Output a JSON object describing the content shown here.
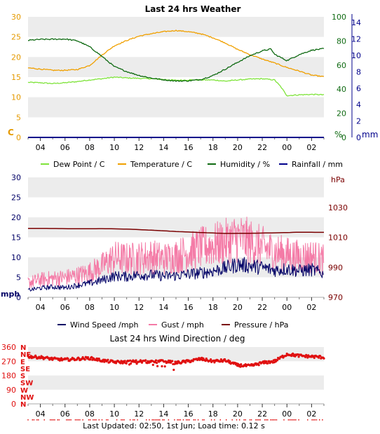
{
  "footer": {
    "last_updated": "Last Updated: 02:50, 1st Jun; Load time: 0.12 s"
  },
  "colors": {
    "dew": "#7ee33a",
    "temp": "#f0a000",
    "humidity": "#0f6a12",
    "rain": "#00008b",
    "wind": "#000066",
    "gust": "#f47aa6",
    "pressure": "#7a0000",
    "direction": "#e01010",
    "band": "#ececec",
    "grid_dark": "#555555"
  },
  "chart_data": [
    {
      "type": "line",
      "title": "Last 24 hrs Weather",
      "x_hours_start": 3.0,
      "x_hours_end": 27.0,
      "x_tick_labels": [
        "04",
        "06",
        "08",
        "10",
        "12",
        "14",
        "16",
        "18",
        "20",
        "22",
        "00",
        "02"
      ],
      "grid": true,
      "legend_position": "bottom",
      "axes": {
        "left_c": {
          "unit_label": "C",
          "ticks": [
            "0",
            "5",
            "10",
            "15",
            "20",
            "25",
            "30"
          ],
          "range": [
            0,
            30
          ]
        },
        "right_pct": {
          "unit_label": "%",
          "ticks": [
            "0",
            "20",
            "40",
            "60",
            "80",
            "100"
          ],
          "range": [
            0,
            100
          ]
        },
        "right_mm": {
          "unit_label": "mm",
          "ticks": [
            "0",
            "2",
            "4",
            "6",
            "8",
            "10",
            "12",
            "14"
          ],
          "range": [
            0,
            14.7
          ]
        }
      },
      "series": [
        {
          "name": "Dew Point / C",
          "axis": "left_c",
          "x": [
            3,
            4,
            5,
            6,
            7,
            8,
            9,
            10,
            11,
            12,
            13,
            14,
            15,
            16,
            17,
            18,
            19,
            20,
            21,
            22,
            23,
            23.5,
            24,
            25,
            26,
            27
          ],
          "y": [
            13.7,
            13.6,
            13.4,
            13.6,
            13.9,
            14.3,
            14.6,
            15.0,
            14.8,
            14.7,
            14.6,
            14.4,
            14.2,
            14.3,
            14.3,
            14.3,
            14.0,
            14.3,
            14.5,
            14.6,
            14.3,
            12.6,
            10.4,
            10.6,
            10.7,
            10.6
          ]
        },
        {
          "name": "Temperature / C",
          "axis": "left_c",
          "x": [
            3,
            4,
            5,
            6,
            7,
            8,
            9,
            10,
            11,
            12,
            13,
            14,
            15,
            16,
            17,
            18,
            19,
            20,
            21,
            22,
            23,
            24,
            25,
            26,
            27
          ],
          "y": [
            17.3,
            17.0,
            16.7,
            16.7,
            16.9,
            17.9,
            20.5,
            22.8,
            24.1,
            25.2,
            25.8,
            26.3,
            26.6,
            26.3,
            25.8,
            24.8,
            23.5,
            21.9,
            20.6,
            19.5,
            18.5,
            17.4,
            16.5,
            15.5,
            15.1
          ]
        },
        {
          "name": "Humidity / %",
          "axis": "right_pct",
          "x": [
            3,
            4,
            5,
            6,
            7,
            8,
            9,
            10,
            11,
            12,
            13,
            14,
            15,
            16,
            17,
            18,
            19,
            20,
            21,
            22,
            22.7,
            23,
            24,
            25,
            26,
            27
          ],
          "y": [
            80.5,
            81.3,
            81.4,
            81.6,
            80.1,
            75.1,
            67.2,
            58.7,
            54.6,
            51.4,
            49.2,
            47.8,
            46.8,
            46.9,
            48.0,
            51.3,
            56.6,
            62.3,
            67.7,
            71.8,
            73.3,
            68.9,
            63.7,
            68.7,
            72.3,
            73.6
          ]
        },
        {
          "name": "Rainfall / mm",
          "axis": "right_mm",
          "x": [
            3,
            27
          ],
          "y": [
            0,
            0
          ]
        }
      ]
    },
    {
      "type": "line",
      "title": "",
      "x_hours_start": 3.0,
      "x_hours_end": 27.0,
      "x_tick_labels": [
        "04",
        "06",
        "08",
        "10",
        "12",
        "14",
        "16",
        "18",
        "20",
        "22",
        "00",
        "02"
      ],
      "grid": true,
      "legend_position": "bottom",
      "axes": {
        "left_mph": {
          "unit_label": "mph",
          "ticks": [
            "0",
            "5",
            "10",
            "15",
            "20",
            "25",
            "30"
          ],
          "range": [
            0,
            30
          ]
        },
        "right_hpa": {
          "unit_label": "hPa",
          "ticks": [
            "970",
            "990",
            "1010",
            "1030"
          ],
          "range": [
            970,
            1050
          ]
        }
      },
      "series": [
        {
          "name": "Wind Speed /mph",
          "axis": "left_mph",
          "x": [
            3,
            4,
            5,
            6,
            7,
            8,
            9,
            10,
            11,
            12,
            13,
            14,
            15,
            16,
            17,
            18,
            19,
            20,
            21,
            22,
            23,
            24,
            25,
            26,
            27
          ],
          "y": [
            1.8,
            2.3,
            2.6,
            2.4,
            3.0,
            3.5,
            4.3,
            5.3,
            5.2,
            5.6,
            5.6,
            5.3,
            5.4,
            5.8,
            6.1,
            6.6,
            7.3,
            8.2,
            7.9,
            7.4,
            6.8,
            7.1,
            6.6,
            6.9,
            5.9
          ]
        },
        {
          "name": "Gust / mph",
          "axis": "left_mph",
          "x": [
            3,
            4,
            5,
            6,
            7,
            8,
            9,
            10,
            11,
            12,
            13,
            14,
            15,
            16,
            17,
            18,
            19,
            20,
            21,
            22,
            23,
            24,
            25,
            26,
            27
          ],
          "y": [
            3.5,
            4.2,
            4.5,
            4.7,
            5.2,
            6.0,
            7.5,
            9.5,
            9.2,
            9.4,
            9.8,
            9.2,
            9.8,
            10.8,
            11.8,
            12.5,
            13.2,
            14.3,
            13.2,
            12.0,
            10.8,
            10.2,
            9.6,
            9.8,
            8.8
          ]
        },
        {
          "name": "Pressure / hPa",
          "axis": "right_hpa",
          "x": [
            3,
            5,
            7,
            9,
            11,
            13,
            15,
            17,
            19,
            21,
            23,
            25,
            27
          ],
          "y": [
            1016.0,
            1015.9,
            1015.7,
            1015.8,
            1015.5,
            1014.8,
            1013.9,
            1013.2,
            1012.6,
            1012.7,
            1013.0,
            1013.4,
            1013.3
          ]
        }
      ]
    },
    {
      "type": "scatter",
      "title": "Last 24 hrs Wind Direction / deg",
      "x_hours_start": 3.0,
      "x_hours_end": 27.0,
      "x_tick_labels": [
        "04",
        "06",
        "08",
        "10",
        "12",
        "14",
        "16",
        "18",
        "20",
        "22",
        "00",
        "02"
      ],
      "grid": true,
      "axes": {
        "left_deg": {
          "ticks": [
            "0",
            "90",
            "180",
            "270",
            "360"
          ],
          "range": [
            0,
            360
          ]
        },
        "compass": [
          "N",
          "NE",
          "E",
          "SE",
          "S",
          "SW",
          "W",
          "NW",
          "N"
        ]
      },
      "series": [
        {
          "name": "Wind Direction / deg",
          "x": [
            3,
            4,
            5,
            6,
            7,
            8,
            9,
            10,
            11,
            12,
            13,
            14,
            15,
            16,
            17,
            18,
            19,
            20,
            21,
            22,
            23,
            24,
            25,
            26,
            27
          ],
          "y": [
            300,
            295,
            285,
            280,
            285,
            290,
            275,
            265,
            265,
            270,
            265,
            270,
            260,
            270,
            285,
            270,
            275,
            245,
            240,
            260,
            270,
            315,
            305,
            300,
            295
          ]
        }
      ]
    }
  ]
}
